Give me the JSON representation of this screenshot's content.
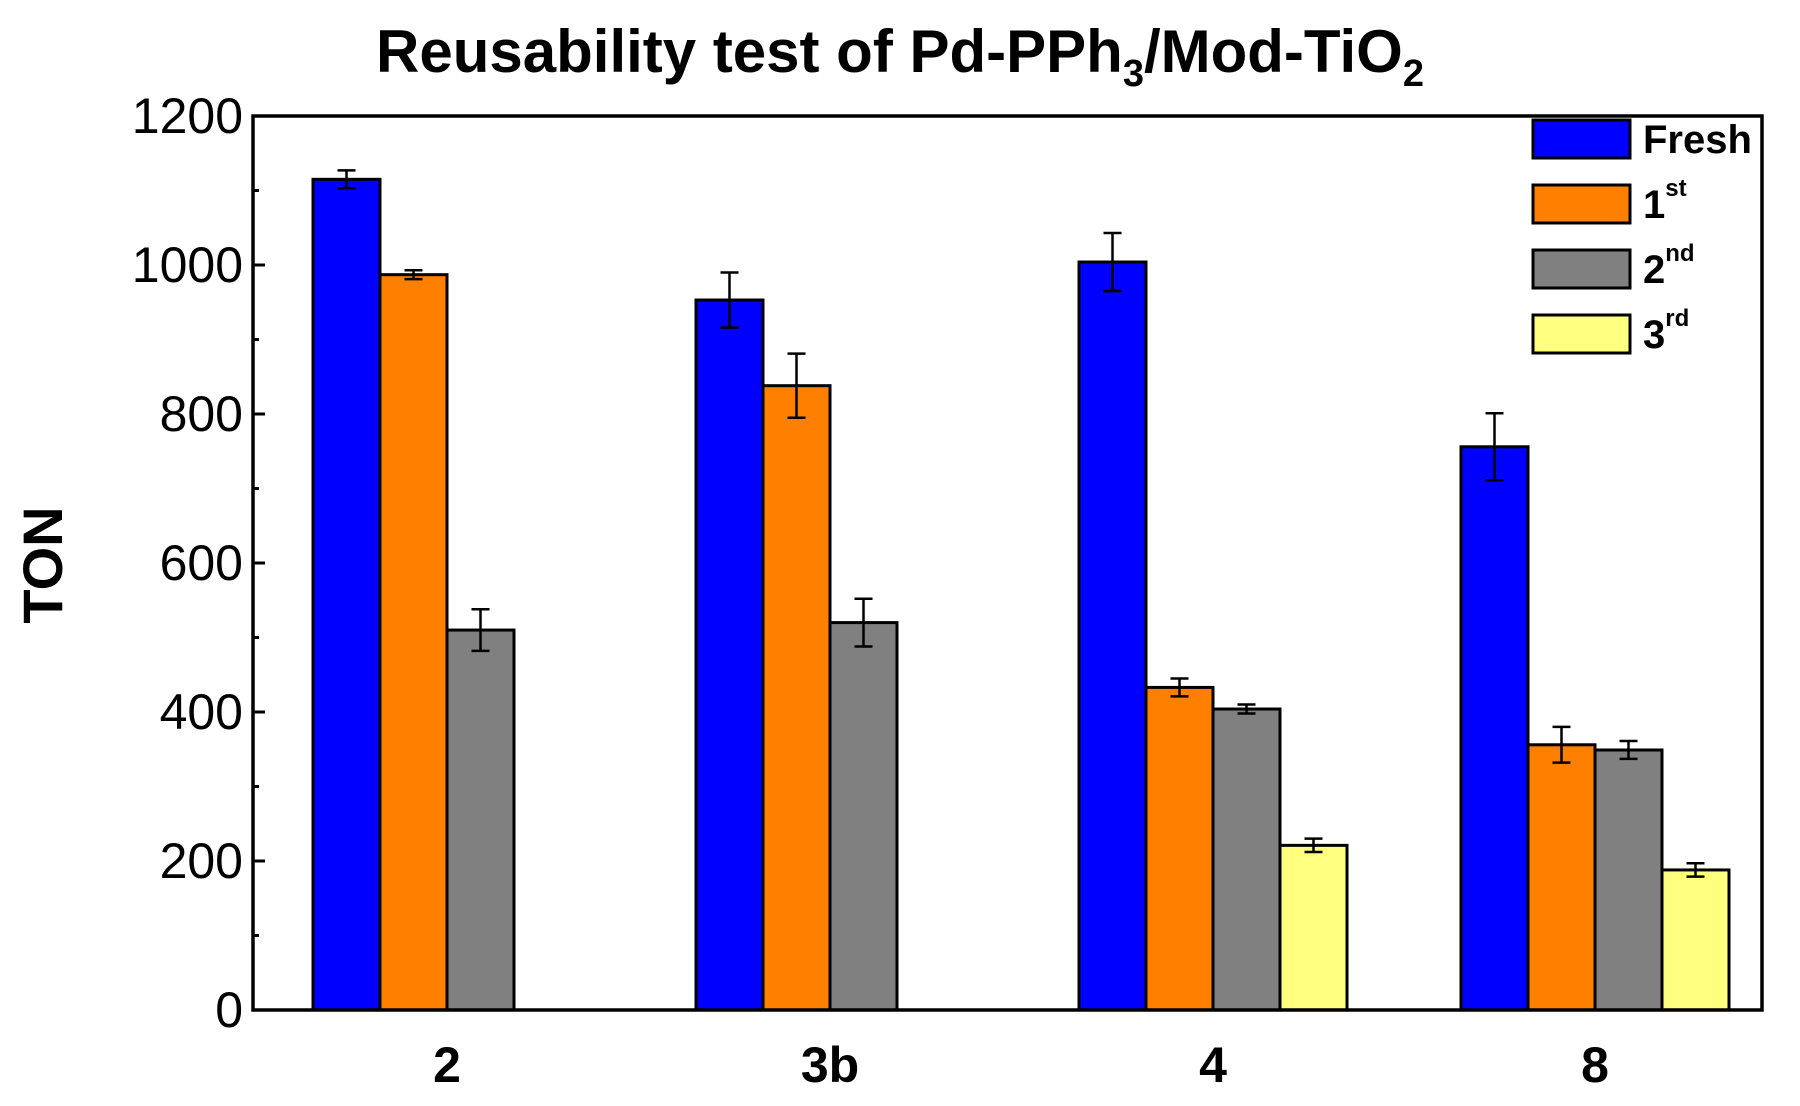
{
  "chart_data": {
    "type": "bar",
    "title": {
      "parts": [
        {
          "text": "Reusability test of Pd-PPh",
          "sub": false
        },
        {
          "text": "3",
          "sub": true
        },
        {
          "text": "/Mod-TiO",
          "sub": false
        },
        {
          "text": "2",
          "sub": true
        }
      ]
    },
    "xlabel": "",
    "ylabel": "TON",
    "ylim": [
      0,
      1200
    ],
    "yticks": [
      0,
      200,
      400,
      600,
      800,
      1000,
      1200
    ],
    "categories": [
      "2",
      "3b",
      "4",
      "8"
    ],
    "legend_position": "top-right",
    "grid": false,
    "series": [
      {
        "name": "Fresh",
        "sup": "",
        "color": "#0000ff",
        "values": [
          1115,
          953,
          1004,
          756
        ],
        "errors": [
          12,
          37,
          39,
          45
        ]
      },
      {
        "name": "1",
        "sup": "st",
        "color": "#ff7f00",
        "values": [
          987,
          838,
          433,
          356
        ],
        "errors": [
          6,
          43,
          12,
          24
        ]
      },
      {
        "name": "2",
        "sup": "nd",
        "color": "#808080",
        "values": [
          510,
          520,
          404,
          349
        ],
        "errors": [
          28,
          32,
          6,
          12
        ]
      },
      {
        "name": "3",
        "sup": "rd",
        "color": "#ffff7f",
        "values": [
          null,
          null,
          221,
          188
        ],
        "errors": [
          null,
          null,
          9,
          9
        ]
      }
    ]
  }
}
